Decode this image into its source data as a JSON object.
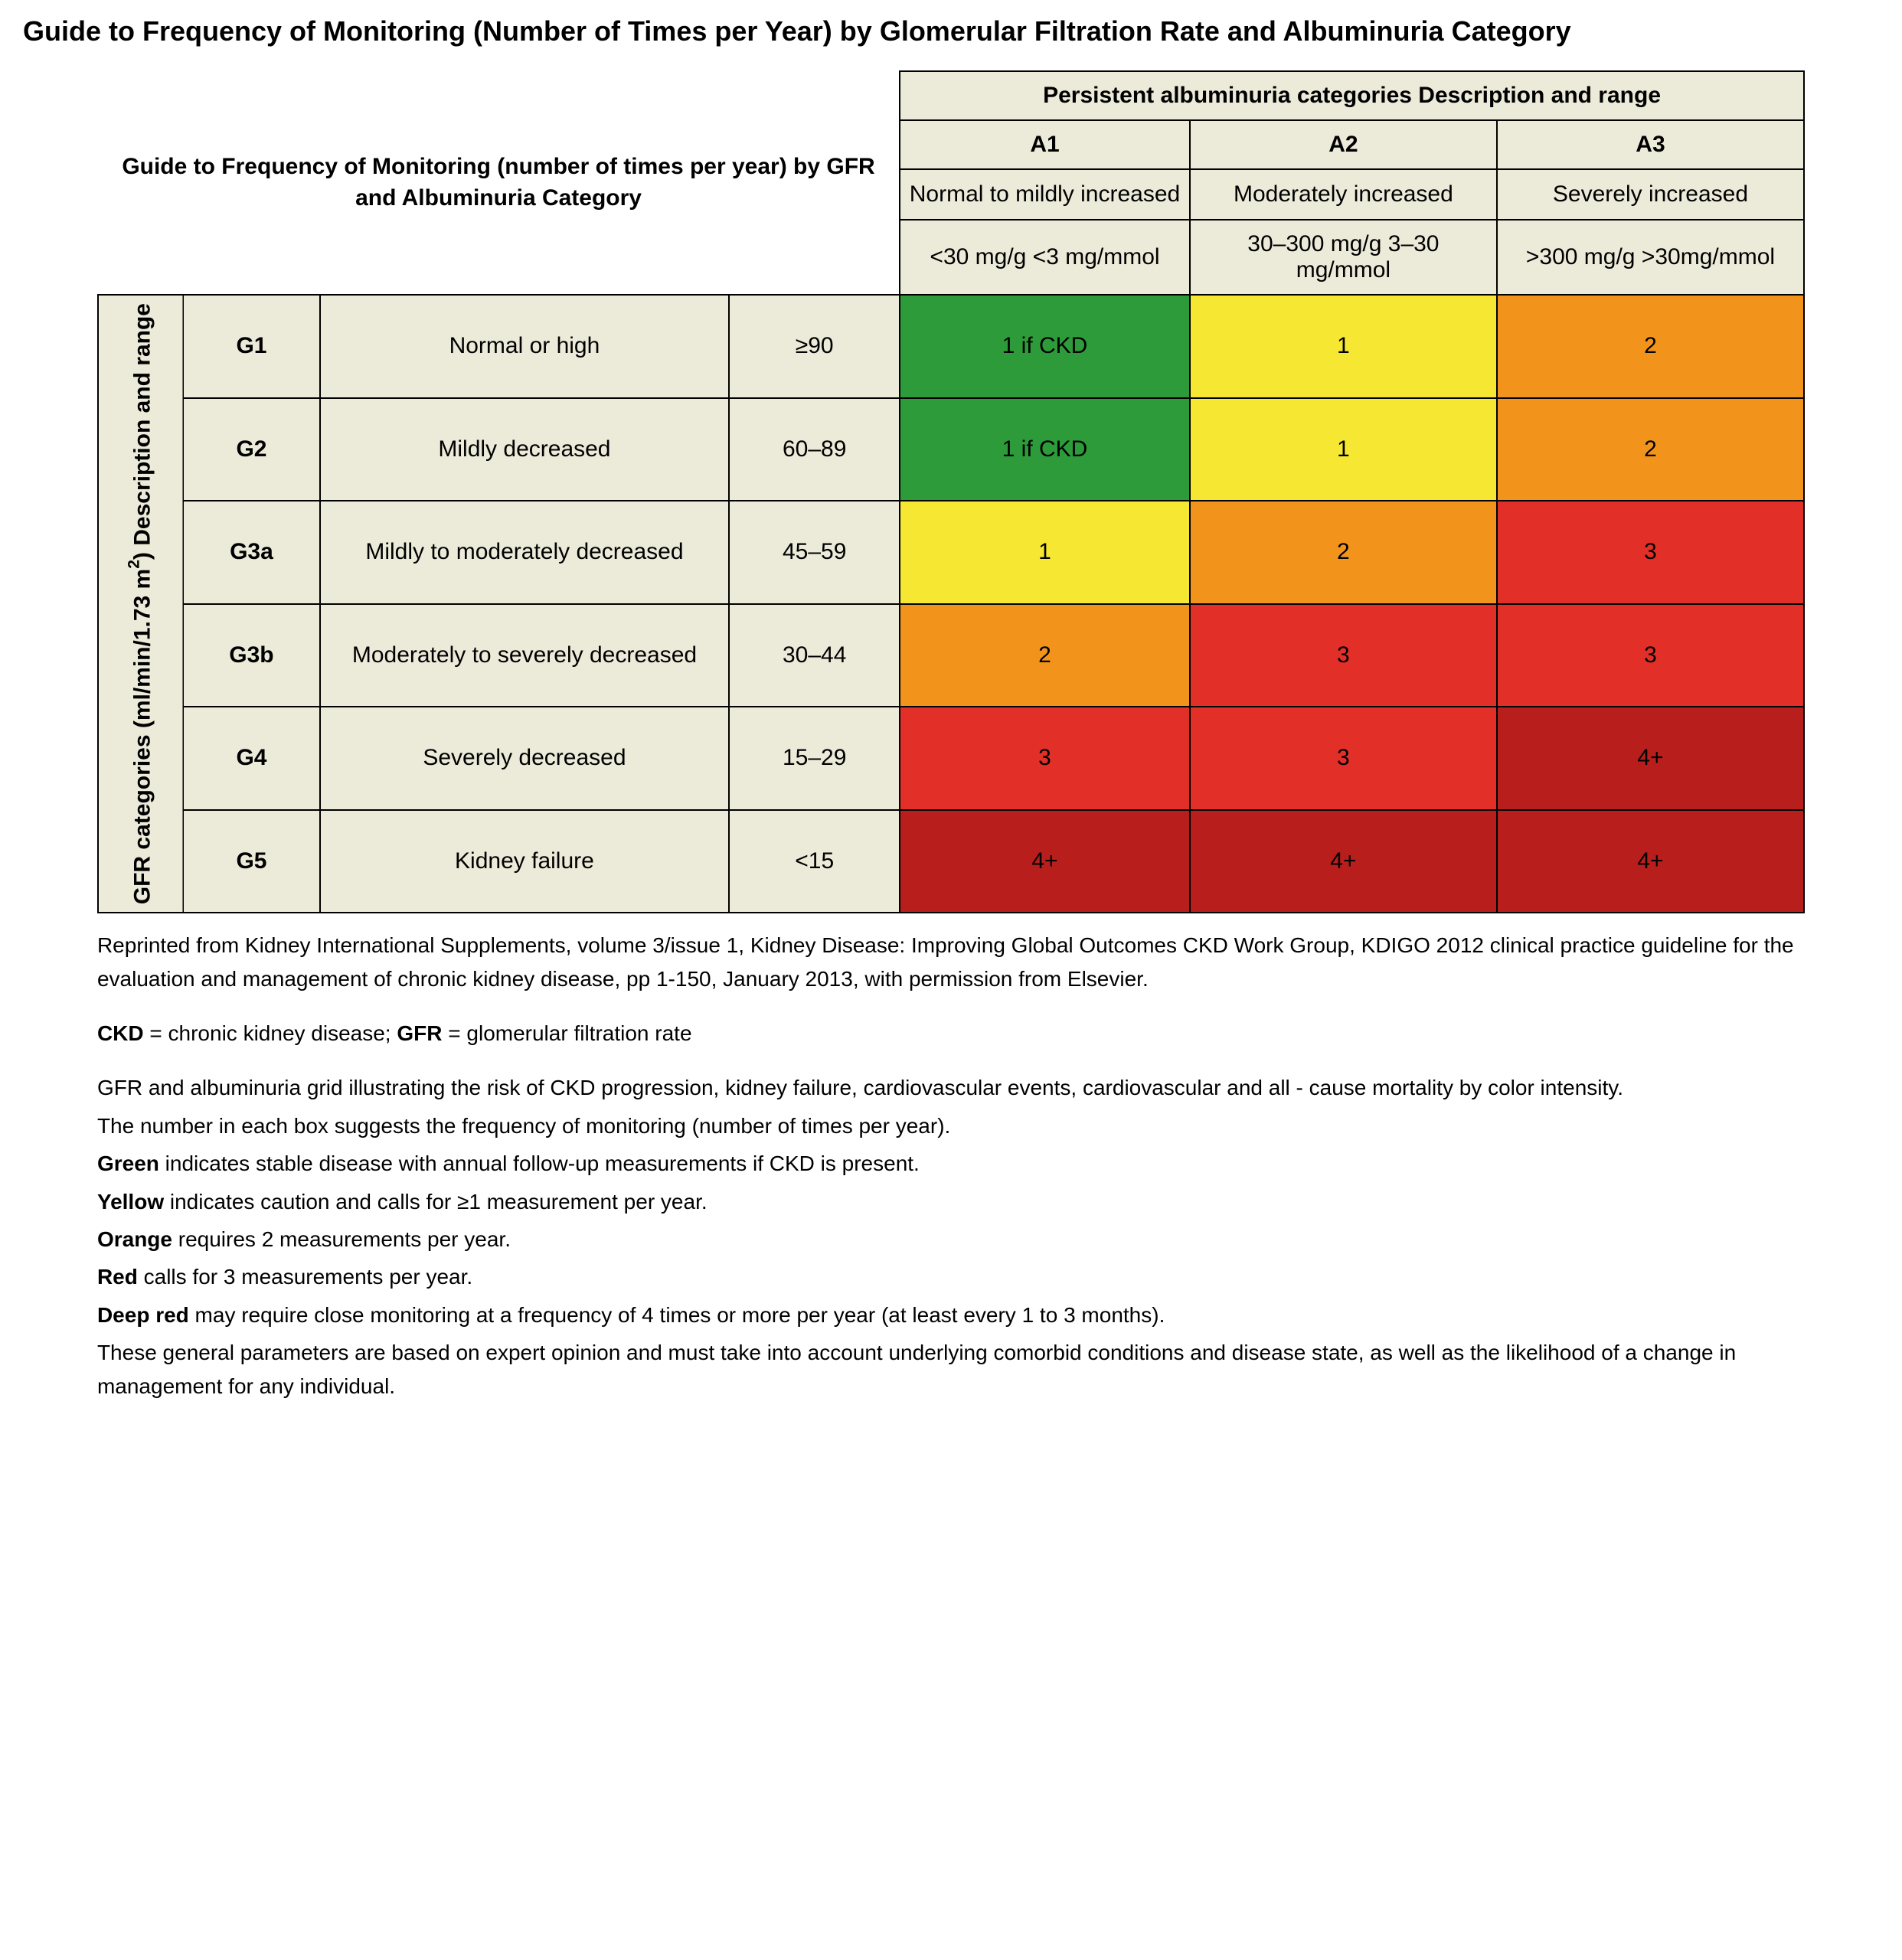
{
  "pageTitle": "Guide to Frequency of Monitoring (Number of Times per Year) by Glomerular Filtration Rate and Albuminuria Category",
  "innerTitle": "Guide to Frequency of Monitoring (number of times per year) by GFR and Albuminuria Category",
  "colGroupHeader": "Persistent albuminuria categories Description  and range",
  "rowGroupHeader_line1": "GFR categories (ml/min/1.73 m",
  "rowGroupHeader_sup": "2",
  "rowGroupHeader_line2": ") Description and range",
  "colors": {
    "green": "#2e9b3a",
    "yellow": "#f6e733",
    "orange": "#f2941c",
    "red": "#e22f27",
    "deepred": "#b81f1c",
    "header": "#ecead9"
  },
  "cols": [
    {
      "code": "A1",
      "desc": "Normal to mildly increased",
      "range": "<30 mg/g <3 mg/mmol"
    },
    {
      "code": "A2",
      "desc": "Moderately increased",
      "range": "30–300 mg/g 3–30 mg/mmol"
    },
    {
      "code": "A3",
      "desc": "Severely increased",
      "range": ">300 mg/g >30mg/mmol"
    }
  ],
  "rows": [
    {
      "code": "G1",
      "desc": "Normal or high",
      "range": "≥90",
      "cells": [
        {
          "v": "1 if CKD",
          "c": "green"
        },
        {
          "v": "1",
          "c": "yellow"
        },
        {
          "v": "2",
          "c": "orange"
        }
      ]
    },
    {
      "code": "G2",
      "desc": "Mildly decreased",
      "range": "60–89",
      "cells": [
        {
          "v": "1 if CKD",
          "c": "green"
        },
        {
          "v": "1",
          "c": "yellow"
        },
        {
          "v": "2",
          "c": "orange"
        }
      ]
    },
    {
      "code": "G3a",
      "desc": "Mildly to moderately decreased",
      "range": "45–59",
      "cells": [
        {
          "v": "1",
          "c": "yellow"
        },
        {
          "v": "2",
          "c": "orange"
        },
        {
          "v": "3",
          "c": "red"
        }
      ]
    },
    {
      "code": "G3b",
      "desc": "Moderately to severely decreased",
      "range": "30–44",
      "cells": [
        {
          "v": "2",
          "c": "orange"
        },
        {
          "v": "3",
          "c": "red"
        },
        {
          "v": "3",
          "c": "red"
        }
      ]
    },
    {
      "code": "G4",
      "desc": "Severely decreased",
      "range": "15–29",
      "cells": [
        {
          "v": "3",
          "c": "red"
        },
        {
          "v": "3",
          "c": "red"
        },
        {
          "v": "4+",
          "c": "deepred"
        }
      ]
    },
    {
      "code": "G5",
      "desc": "Kidney failure",
      "range": "<15",
      "cells": [
        {
          "v": "4+",
          "c": "deepred"
        },
        {
          "v": "4+",
          "c": "deepred"
        },
        {
          "v": "4+",
          "c": "deepred"
        }
      ]
    }
  ],
  "footer": {
    "reprint": "Reprinted from Kidney International Supplements, volume 3/issue 1, Kidney Disease: Improving Global Outcomes CKD Work Group, KDIGO 2012 clinical practice guideline for the evaluation and management of chronic kidney disease, pp 1-150, January 2013, with permission from Elsevier.",
    "abbr_ckd_label": "CKD",
    "abbr_ckd_text": " = chronic kidney disease;  ",
    "abbr_gfr_label": "GFR",
    "abbr_gfr_text": " = glomerular filtration rate",
    "para1": "GFR and albuminuria grid illustrating the risk of CKD progression, kidney failure, cardiovascular events, cardiovascular and all - cause mortality by color intensity.",
    "para2": "The number in each box suggests the frequency of monitoring (number of times per year).",
    "legend": [
      {
        "label": "Green",
        "text": "   indicates stable disease with annual follow-up measurements if CKD is present."
      },
      {
        "label": "Yellow",
        "text": "  indicates caution and calls for ≥1 measurement per year."
      },
      {
        "label": "Orange",
        "text": " requires 2 measurements per year."
      },
      {
        "label": "Red",
        "text": "       calls for 3 measurements per year."
      },
      {
        "label": "Deep red",
        "text": "  may require close monitoring at a frequency of 4 times or more per year (at least every 1 to 3 months)."
      }
    ],
    "closing": "These general parameters are based on expert opinion and must take into account underlying comorbid conditions and disease state, as well as the likelihood of a change in management for any individual."
  }
}
